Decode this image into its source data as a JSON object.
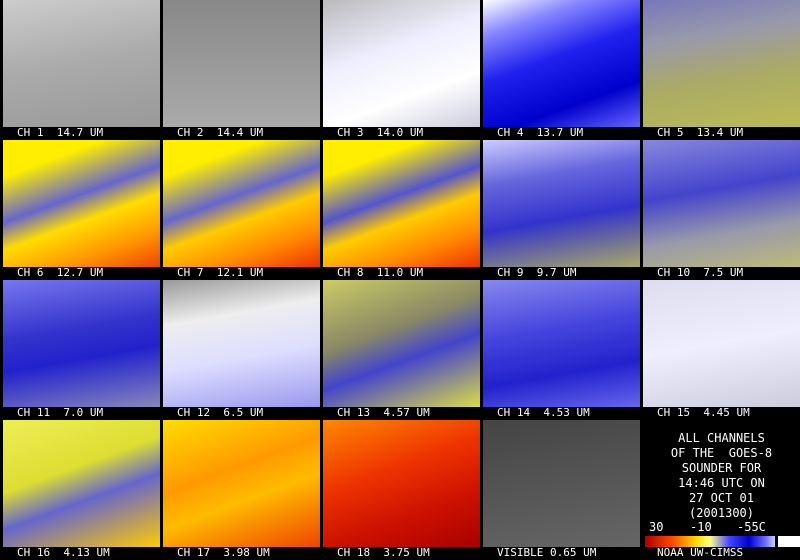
{
  "panels": [
    {
      "label": "CH 1  14.7 UM"
    },
    {
      "label": "CH 2  14.4 UM"
    },
    {
      "label": "CH 3  14.0 UM"
    },
    {
      "label": "CH 4  13.7 UM"
    },
    {
      "label": "CH 5  13.4 UM"
    },
    {
      "label": "CH 6  12.7 UM"
    },
    {
      "label": "CH 7  12.1 UM"
    },
    {
      "label": "CH 8  11.0 UM"
    },
    {
      "label": "CH 9  9.7 UM"
    },
    {
      "label": "CH 10  7.5 UM"
    },
    {
      "label": "CH 11  7.0 UM"
    },
    {
      "label": "CH 12  6.5 UM"
    },
    {
      "label": "CH 13  4.57 UM"
    },
    {
      "label": "CH 14  4.53 UM"
    },
    {
      "label": "CH 15  4.45 UM"
    },
    {
      "label": "CH 16  4.13 UM"
    },
    {
      "label": "CH 17  3.98 UM"
    },
    {
      "label": "CH 18  3.75 UM"
    },
    {
      "label": "VISIBLE 0.65 UM"
    }
  ],
  "info": {
    "lines": [
      "ALL CHANNELS",
      "OF THE  GOES-8",
      "SOUNDER FOR",
      "14:46 UTC ON",
      "27 OCT 01",
      "(2001300)"
    ],
    "scale_labels": [
      "30",
      "-10",
      "-55C"
    ],
    "credit": "NOAA UW-CIMSS"
  }
}
